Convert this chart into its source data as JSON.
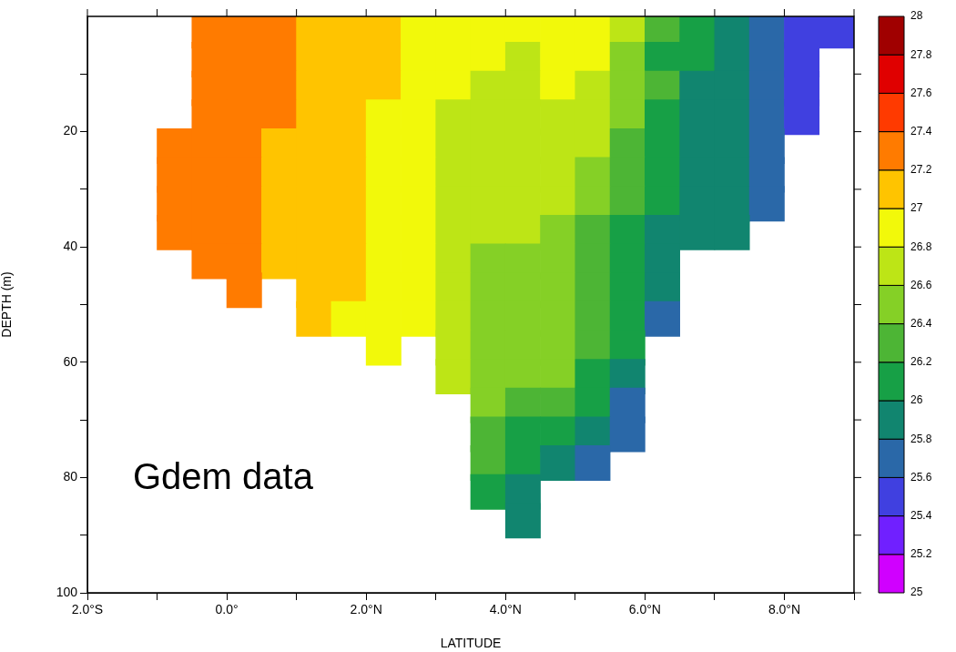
{
  "chart_data": {
    "type": "scatter",
    "xlabel": "LATITUDE",
    "ylabel": "DEPTH (m)",
    "annotations": [
      "Gdem data"
    ],
    "marker": "square",
    "xlim": [
      -2,
      9
    ],
    "xticks": [
      {
        "value": -2,
        "label": "2.0°S"
      },
      {
        "value": -1,
        "label": null
      },
      {
        "value": 0,
        "label": "0.0°"
      },
      {
        "value": 1,
        "label": null
      },
      {
        "value": 2,
        "label": "2.0°N"
      },
      {
        "value": 3,
        "label": null
      },
      {
        "value": 4,
        "label": "4.0°N"
      },
      {
        "value": 5,
        "label": null
      },
      {
        "value": 6,
        "label": "6.0°N"
      },
      {
        "value": 7,
        "label": null
      },
      {
        "value": 8,
        "label": "8.0°N"
      },
      {
        "value": 9,
        "label": null
      }
    ],
    "ylim": [
      100,
      0
    ],
    "yticks": [
      {
        "value": 10,
        "label": null
      },
      20,
      {
        "value": 30,
        "label": null
      },
      40,
      {
        "value": 50,
        "label": null
      },
      60,
      {
        "value": 70,
        "label": null
      },
      80,
      {
        "value": 90,
        "label": null
      },
      100
    ],
    "clim": [
      25,
      28
    ],
    "cticks": [
      25,
      25.2,
      25.4,
      25.6,
      25.8,
      26,
      26.2,
      26.4,
      26.6,
      26.8,
      27,
      27.2,
      27.4,
      27.6,
      27.8,
      28
    ],
    "x": [
      -0.25,
      0.25,
      0.75,
      1.25,
      1.75,
      2.25,
      2.75,
      3.25,
      3.75,
      4.25,
      4.75,
      5.25,
      5.75,
      6.25,
      6.75,
      7.25,
      7.75,
      8.25,
      8.75,
      -0.25,
      0.25,
      0.75,
      1.25,
      1.75,
      2.25,
      2.75,
      3.25,
      3.75,
      4.25,
      4.75,
      5.25,
      5.75,
      6.25,
      6.75,
      7.25,
      7.75,
      8.25,
      -0.25,
      0.25,
      0.75,
      1.25,
      1.75,
      2.25,
      2.75,
      3.25,
      3.75,
      4.25,
      4.75,
      5.25,
      5.75,
      6.25,
      6.75,
      7.25,
      7.75,
      8.25,
      -0.25,
      0.25,
      0.75,
      1.25,
      1.75,
      2.25,
      2.75,
      3.25,
      3.75,
      4.25,
      4.75,
      5.25,
      5.75,
      6.25,
      6.75,
      7.25,
      7.75,
      8.25,
      -0.75,
      -0.25,
      0.25,
      0.75,
      1.25,
      1.75,
      2.25,
      2.75,
      3.25,
      3.75,
      4.25,
      4.75,
      5.25,
      5.75,
      6.25,
      6.75,
      7.25,
      7.75,
      -0.75,
      -0.25,
      0.25,
      0.75,
      1.25,
      1.75,
      2.25,
      2.75,
      3.25,
      3.75,
      4.25,
      4.75,
      5.25,
      5.75,
      6.25,
      6.75,
      7.25,
      7.75,
      -0.75,
      -0.25,
      0.25,
      0.75,
      1.25,
      1.75,
      2.25,
      2.75,
      3.25,
      3.75,
      4.25,
      4.75,
      5.25,
      5.75,
      6.25,
      6.75,
      7.25,
      7.75,
      -0.75,
      -0.25,
      0.25,
      0.75,
      1.25,
      1.75,
      2.25,
      2.75,
      3.25,
      3.75,
      4.25,
      4.75,
      5.25,
      5.75,
      6.25,
      6.75,
      7.25,
      -0.25,
      0.25,
      0.75,
      1.25,
      1.75,
      2.25,
      2.75,
      3.25,
      3.75,
      4.25,
      4.75,
      5.25,
      5.75,
      6.25,
      0.25,
      1.25,
      1.75,
      2.25,
      2.75,
      3.25,
      3.75,
      4.25,
      4.75,
      5.25,
      5.75,
      6.25,
      1.25,
      1.75,
      2.25,
      2.75,
      3.25,
      3.75,
      4.25,
      4.75,
      5.25,
      5.75,
      6.25,
      2.25,
      3.25,
      3.75,
      4.25,
      4.75,
      5.25,
      5.75,
      3.25,
      3.75,
      4.25,
      4.75,
      5.25,
      5.75,
      3.75,
      4.25,
      4.75,
      5.25,
      5.75,
      3.75,
      4.25,
      4.75,
      5.25,
      5.75,
      3.75,
      4.25,
      4.75,
      5.25,
      3.75,
      4.25,
      4.25
    ],
    "values": [
      2.5,
      2.5,
      2.5,
      2.5,
      2.5,
      2.5,
      2.5,
      2.5,
      2.5,
      2.5,
      2.5,
      2.5,
      2.5,
      2.5,
      2.5,
      2.5,
      2.5,
      2.5,
      2.5,
      7.5,
      7.5,
      7.5,
      7.5,
      7.5,
      7.5,
      7.5,
      7.5,
      7.5,
      7.5,
      7.5,
      7.5,
      7.5,
      7.5,
      7.5,
      7.5,
      7.5,
      7.5,
      12.5,
      12.5,
      12.5,
      12.5,
      12.5,
      12.5,
      12.5,
      12.5,
      12.5,
      12.5,
      12.5,
      12.5,
      12.5,
      12.5,
      12.5,
      12.5,
      12.5,
      12.5,
      17.5,
      17.5,
      17.5,
      17.5,
      17.5,
      17.5,
      17.5,
      17.5,
      17.5,
      17.5,
      17.5,
      17.5,
      17.5,
      17.5,
      17.5,
      17.5,
      17.5,
      17.5,
      22.5,
      22.5,
      22.5,
      22.5,
      22.5,
      22.5,
      22.5,
      22.5,
      22.5,
      22.5,
      22.5,
      22.5,
      22.5,
      22.5,
      22.5,
      22.5,
      22.5,
      22.5,
      27.5,
      27.5,
      27.5,
      27.5,
      27.5,
      27.5,
      27.5,
      27.5,
      27.5,
      27.5,
      27.5,
      27.5,
      27.5,
      27.5,
      27.5,
      27.5,
      27.5,
      27.5,
      32.5,
      32.5,
      32.5,
      32.5,
      32.5,
      32.5,
      32.5,
      32.5,
      32.5,
      32.5,
      32.5,
      32.5,
      32.5,
      32.5,
      32.5,
      32.5,
      32.5,
      32.5,
      37.5,
      37.5,
      37.5,
      37.5,
      37.5,
      37.5,
      37.5,
      37.5,
      37.5,
      37.5,
      37.5,
      37.5,
      37.5,
      37.5,
      37.5,
      37.5,
      37.5,
      42.5,
      42.5,
      42.5,
      42.5,
      42.5,
      42.5,
      42.5,
      42.5,
      42.5,
      42.5,
      42.5,
      42.5,
      42.5,
      42.5,
      47.5,
      47.5,
      47.5,
      47.5,
      47.5,
      47.5,
      47.5,
      47.5,
      47.5,
      47.5,
      47.5,
      47.5,
      52.5,
      52.5,
      52.5,
      52.5,
      52.5,
      52.5,
      52.5,
      52.5,
      52.5,
      52.5,
      52.5,
      57.5,
      57.5,
      57.5,
      57.5,
      57.5,
      57.5,
      57.5,
      62.5,
      62.5,
      62.5,
      62.5,
      62.5,
      62.5,
      67.5,
      67.5,
      67.5,
      67.5,
      67.5,
      72.5,
      72.5,
      72.5,
      72.5,
      72.5,
      77.5,
      77.5,
      77.5,
      77.5,
      82.5,
      82.5,
      87.5
    ],
    "cvalues": [
      27.3,
      27.3,
      27.3,
      27.1,
      27.1,
      27.1,
      26.9,
      26.9,
      26.9,
      26.9,
      26.9,
      26.9,
      26.7,
      26.3,
      26.1,
      25.9,
      25.7,
      25.5,
      25.5,
      27.3,
      27.3,
      27.3,
      27.1,
      27.1,
      27.1,
      26.9,
      26.9,
      26.9,
      26.7,
      26.9,
      26.9,
      26.5,
      26.1,
      26.1,
      25.9,
      25.7,
      25.5,
      27.3,
      27.3,
      27.3,
      27.1,
      27.1,
      27.1,
      26.9,
      26.9,
      26.7,
      26.7,
      26.9,
      26.7,
      26.5,
      26.3,
      25.9,
      25.9,
      25.7,
      25.5,
      27.3,
      27.3,
      27.3,
      27.1,
      27.1,
      26.9,
      26.9,
      26.7,
      26.7,
      26.7,
      26.7,
      26.7,
      26.5,
      26.1,
      25.9,
      25.9,
      25.7,
      25.5,
      27.3,
      27.3,
      27.3,
      27.1,
      27.1,
      27.1,
      26.9,
      26.9,
      26.7,
      26.7,
      26.7,
      26.7,
      26.7,
      26.3,
      26.1,
      25.9,
      25.9,
      25.7,
      27.3,
      27.3,
      27.3,
      27.1,
      27.1,
      27.1,
      26.9,
      26.9,
      26.7,
      26.7,
      26.7,
      26.7,
      26.5,
      26.3,
      26.1,
      25.9,
      25.9,
      25.7,
      27.3,
      27.3,
      27.3,
      27.1,
      27.1,
      27.1,
      26.9,
      26.9,
      26.7,
      26.7,
      26.7,
      26.7,
      26.5,
      26.3,
      26.1,
      25.9,
      25.9,
      25.7,
      27.3,
      27.3,
      27.3,
      27.1,
      27.1,
      27.1,
      26.9,
      26.9,
      26.7,
      26.7,
      26.7,
      26.5,
      26.3,
      26.1,
      25.9,
      25.9,
      25.9,
      27.3,
      27.3,
      27.1,
      27.1,
      27.1,
      26.9,
      26.9,
      26.7,
      26.5,
      26.5,
      26.5,
      26.3,
      26.1,
      25.9,
      27.3,
      27.1,
      27.1,
      26.9,
      26.9,
      26.7,
      26.5,
      26.5,
      26.5,
      26.3,
      26.1,
      25.9,
      27.1,
      26.9,
      26.9,
      26.9,
      26.7,
      26.5,
      26.5,
      26.5,
      26.3,
      26.1,
      25.7,
      26.9,
      26.7,
      26.5,
      26.5,
      26.5,
      26.3,
      26.1,
      26.7,
      26.5,
      26.5,
      26.5,
      26.1,
      25.9,
      26.5,
      26.3,
      26.3,
      26.1,
      25.7,
      26.3,
      26.1,
      26.1,
      25.9,
      25.7,
      26.3,
      26.1,
      25.9,
      25.7,
      26.1,
      25.9,
      25.9
    ]
  }
}
